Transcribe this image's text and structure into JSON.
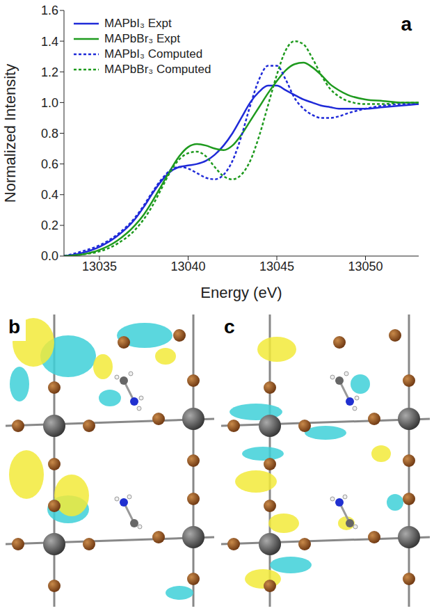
{
  "chart_data": {
    "type": "line",
    "panel": "a",
    "x_label": "Energy (eV)",
    "y_label": "Normalized Intensity",
    "x": [
      13033,
      13034,
      13035,
      13036,
      13037,
      13037.5,
      13038,
      13038.5,
      13039,
      13039.5,
      13040,
      13040.5,
      13041,
      13041.5,
      13042,
      13042.5,
      13043,
      13043.5,
      13044,
      13044.5,
      13045,
      13045.5,
      13046,
      13046.5,
      13047,
      13047.5,
      13048,
      13048.5,
      13049,
      13050,
      13051,
      13052,
      13053
    ],
    "series": [
      {
        "name": "MAPbI₃ Expt",
        "color": "#1f2ad8",
        "line_style": "solid",
        "values": [
          0.0,
          0.02,
          0.06,
          0.13,
          0.24,
          0.32,
          0.41,
          0.49,
          0.55,
          0.58,
          0.59,
          0.6,
          0.62,
          0.66,
          0.72,
          0.8,
          0.9,
          1.0,
          1.07,
          1.11,
          1.11,
          1.08,
          1.05,
          1.02,
          1.0,
          0.98,
          0.97,
          0.96,
          0.96,
          0.96,
          0.97,
          0.98,
          0.99
        ]
      },
      {
        "name": "MAPbBr₃ Expt",
        "color": "#1e9a1e",
        "line_style": "solid",
        "values": [
          0.0,
          0.01,
          0.04,
          0.1,
          0.2,
          0.27,
          0.36,
          0.46,
          0.56,
          0.65,
          0.71,
          0.73,
          0.72,
          0.7,
          0.69,
          0.72,
          0.79,
          0.88,
          0.97,
          1.06,
          1.14,
          1.21,
          1.25,
          1.26,
          1.23,
          1.18,
          1.12,
          1.08,
          1.05,
          1.02,
          1.01,
          1.0,
          1.0
        ]
      },
      {
        "name": "MAPbI₃ Computed",
        "color": "#1f2ad8",
        "line_style": "dotted",
        "values": [
          0.0,
          0.03,
          0.07,
          0.14,
          0.25,
          0.33,
          0.42,
          0.5,
          0.56,
          0.58,
          0.57,
          0.54,
          0.51,
          0.5,
          0.53,
          0.62,
          0.78,
          0.98,
          1.15,
          1.24,
          1.24,
          1.15,
          1.03,
          0.96,
          0.92,
          0.9,
          0.9,
          0.91,
          0.93,
          0.96,
          0.98,
          0.99,
          0.99
        ]
      },
      {
        "name": "MAPbBr₃ Computed",
        "color": "#1e9a1e",
        "line_style": "dotted",
        "values": [
          0.0,
          0.01,
          0.03,
          0.08,
          0.17,
          0.24,
          0.33,
          0.44,
          0.55,
          0.63,
          0.67,
          0.68,
          0.65,
          0.58,
          0.52,
          0.5,
          0.53,
          0.62,
          0.78,
          0.98,
          1.18,
          1.34,
          1.4,
          1.38,
          1.29,
          1.18,
          1.09,
          1.04,
          1.01,
          0.99,
          0.99,
          1.0,
          1.0
        ]
      }
    ],
    "xlim": [
      13033,
      13053
    ],
    "xticks": [
      13035,
      13040,
      13045,
      13050
    ],
    "ylim": [
      0,
      1.6
    ],
    "yticks": [
      {
        "value": 0,
        "label": "0.0"
      },
      0.2,
      0.4,
      0.6,
      0.8,
      {
        "value": 1,
        "label": "1.0"
      },
      1.2,
      1.4,
      1.6
    ],
    "grid": false,
    "legend": "upper left"
  },
  "images": [
    {
      "panel": "b"
    },
    {
      "panel": "c"
    }
  ]
}
